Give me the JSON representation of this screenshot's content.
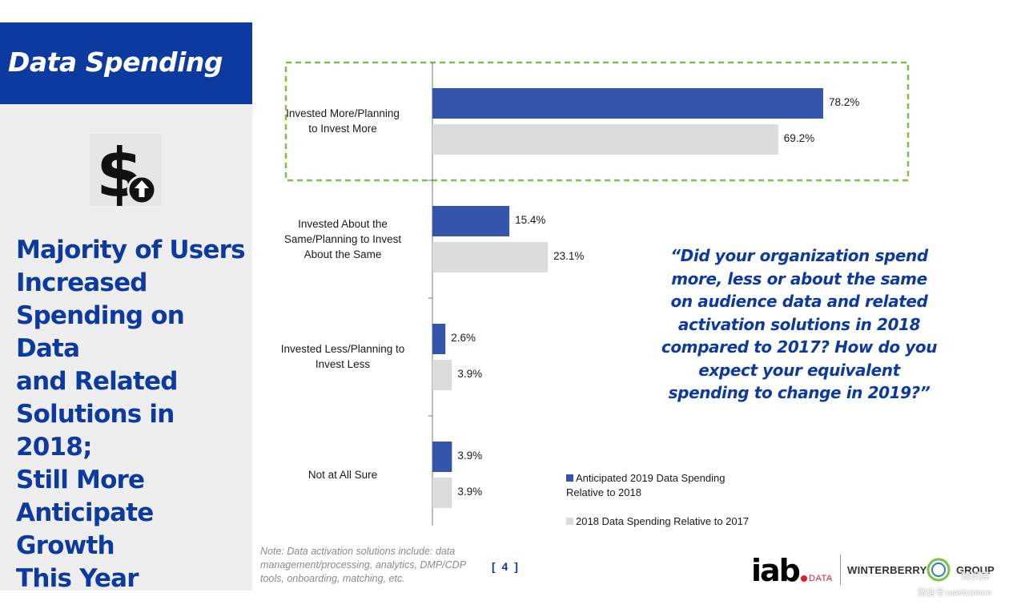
{
  "slide": {
    "title": "Data Spending",
    "headline": "Majority of Users\nIncreased\nSpending on Data\nand Related\nSolutions in 2018;\nStill More\nAnticipate Growth\nThis Year",
    "question": "“Did your organization spend more, less or about the same on audience data and related activation solutions in 2018 compared to 2017? How do you expect your equivalent spending to change in 2019?”",
    "note": "Note: Data activation solutions include: data management/processing, analytics, DMP/CDP tools, onboarding, matching, etc.",
    "page_number": "[ 4 ]",
    "icon": "dollar-up-arrow-icon"
  },
  "logos": {
    "iab": "iab",
    "iab_data": "DATA",
    "winterberry": "WINTERBERRY",
    "group": "GROUP",
    "watermark_top": "知识库",
    "watermark_bottom": "微信号:useitcomcn"
  },
  "colors": {
    "brand_blue": "#0d3a9e",
    "series_2019": "#3355aa",
    "series_2018": "#dcdcdc",
    "highlight": "#7cc242"
  },
  "chart_data": {
    "type": "bar",
    "orientation": "horizontal",
    "categories": [
      "Invested More/Planning\nto Invest More",
      "Invested About the\nSame/Planning to Invest\nAbout the Same",
      "Invested Less/Planning to\nInvest Less",
      "Not at All Sure"
    ],
    "series": [
      {
        "name": "Anticipated 2019 Data Spending\nRelative to 2018",
        "values": [
          78.2,
          15.4,
          2.6,
          3.9
        ],
        "labels": [
          "78.2%",
          "15.4%",
          "2.6%",
          "3.9%"
        ]
      },
      {
        "name": "2018 Data Spending Relative to 2017",
        "values": [
          69.2,
          23.1,
          3.9,
          3.9
        ],
        "labels": [
          "69.2%",
          "23.1%",
          "3.9%",
          "3.9%"
        ]
      }
    ],
    "xlim": [
      0,
      100
    ],
    "grid": false,
    "legend_position": "bottom-right",
    "highlight_category": 0
  }
}
